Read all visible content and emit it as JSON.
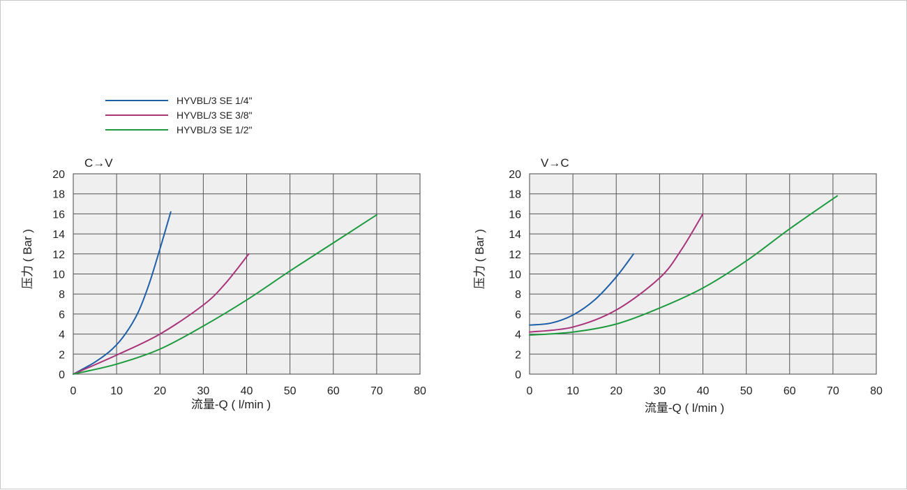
{
  "legend": [
    {
      "label": "HYVBL/3 SE 1/4\"",
      "color": "#1e5fa8"
    },
    {
      "label": "HYVBL/3 SE 3/8\"",
      "color": "#a8347a"
    },
    {
      "label": "HYVBL/3 SE 1/2\"",
      "color": "#1e9a3e"
    }
  ],
  "chart_data": [
    {
      "type": "line",
      "title": "C→V",
      "xlabel": "流量-Q ( l/min )",
      "ylabel": "压力 ( Bar )",
      "xlim": [
        0,
        80
      ],
      "ylim": [
        0,
        20
      ],
      "xticks": [
        0,
        10,
        20,
        30,
        40,
        50,
        60,
        70,
        80
      ],
      "yticks": [
        0,
        2,
        4,
        6,
        8,
        10,
        12,
        14,
        16,
        18,
        20
      ],
      "grid": true,
      "legend_position": "top-left",
      "series": [
        {
          "name": "HYVBL/3 SE 1/4\"",
          "color": "#1e5fa8",
          "points": [
            [
              0,
              0
            ],
            [
              5,
              1.2
            ],
            [
              9,
              2.5
            ],
            [
              12,
              4
            ],
            [
              15,
              6.2
            ],
            [
              17.5,
              9
            ],
            [
              20,
              12.5
            ],
            [
              22.5,
              16.2
            ]
          ]
        },
        {
          "name": "HYVBL/3 SE 3/8\"",
          "color": "#a8347a",
          "points": [
            [
              0,
              0
            ],
            [
              10,
              1.9
            ],
            [
              20,
              4
            ],
            [
              30,
              6.9
            ],
            [
              35,
              9
            ],
            [
              40.5,
              12
            ]
          ]
        },
        {
          "name": "HYVBL/3 SE 1/2\"",
          "color": "#1e9a3e",
          "points": [
            [
              0,
              0
            ],
            [
              10,
              1
            ],
            [
              20,
              2.5
            ],
            [
              30,
              4.8
            ],
            [
              40,
              7.4
            ],
            [
              50,
              10.3
            ],
            [
              60,
              13.1
            ],
            [
              70,
              15.9
            ]
          ]
        }
      ]
    },
    {
      "type": "line",
      "title": "V→C",
      "xlabel": "流量-Q ( l/min )",
      "ylabel": "压力 ( Bar )",
      "xlim": [
        0,
        80
      ],
      "ylim": [
        0,
        20
      ],
      "xticks": [
        0,
        10,
        20,
        30,
        40,
        50,
        60,
        70,
        80
      ],
      "yticks": [
        0,
        2,
        4,
        6,
        8,
        10,
        12,
        14,
        16,
        18,
        20
      ],
      "grid": true,
      "series": [
        {
          "name": "HYVBL/3 SE 1/4\"",
          "color": "#1e5fa8",
          "points": [
            [
              0,
              4.9
            ],
            [
              5,
              5.1
            ],
            [
              10,
              5.9
            ],
            [
              15,
              7.4
            ],
            [
              20,
              9.7
            ],
            [
              24,
              12
            ]
          ]
        },
        {
          "name": "HYVBL/3 SE 3/8\"",
          "color": "#a8347a",
          "points": [
            [
              0,
              4.2
            ],
            [
              10,
              4.7
            ],
            [
              20,
              6.4
            ],
            [
              30,
              9.6
            ],
            [
              35,
              12.4
            ],
            [
              40,
              16
            ]
          ]
        },
        {
          "name": "HYVBL/3 SE 1/2\"",
          "color": "#1e9a3e",
          "points": [
            [
              0,
              3.9
            ],
            [
              10,
              4.2
            ],
            [
              20,
              5
            ],
            [
              30,
              6.6
            ],
            [
              40,
              8.6
            ],
            [
              50,
              11.3
            ],
            [
              60,
              14.5
            ],
            [
              71,
              17.8
            ]
          ]
        }
      ]
    }
  ]
}
